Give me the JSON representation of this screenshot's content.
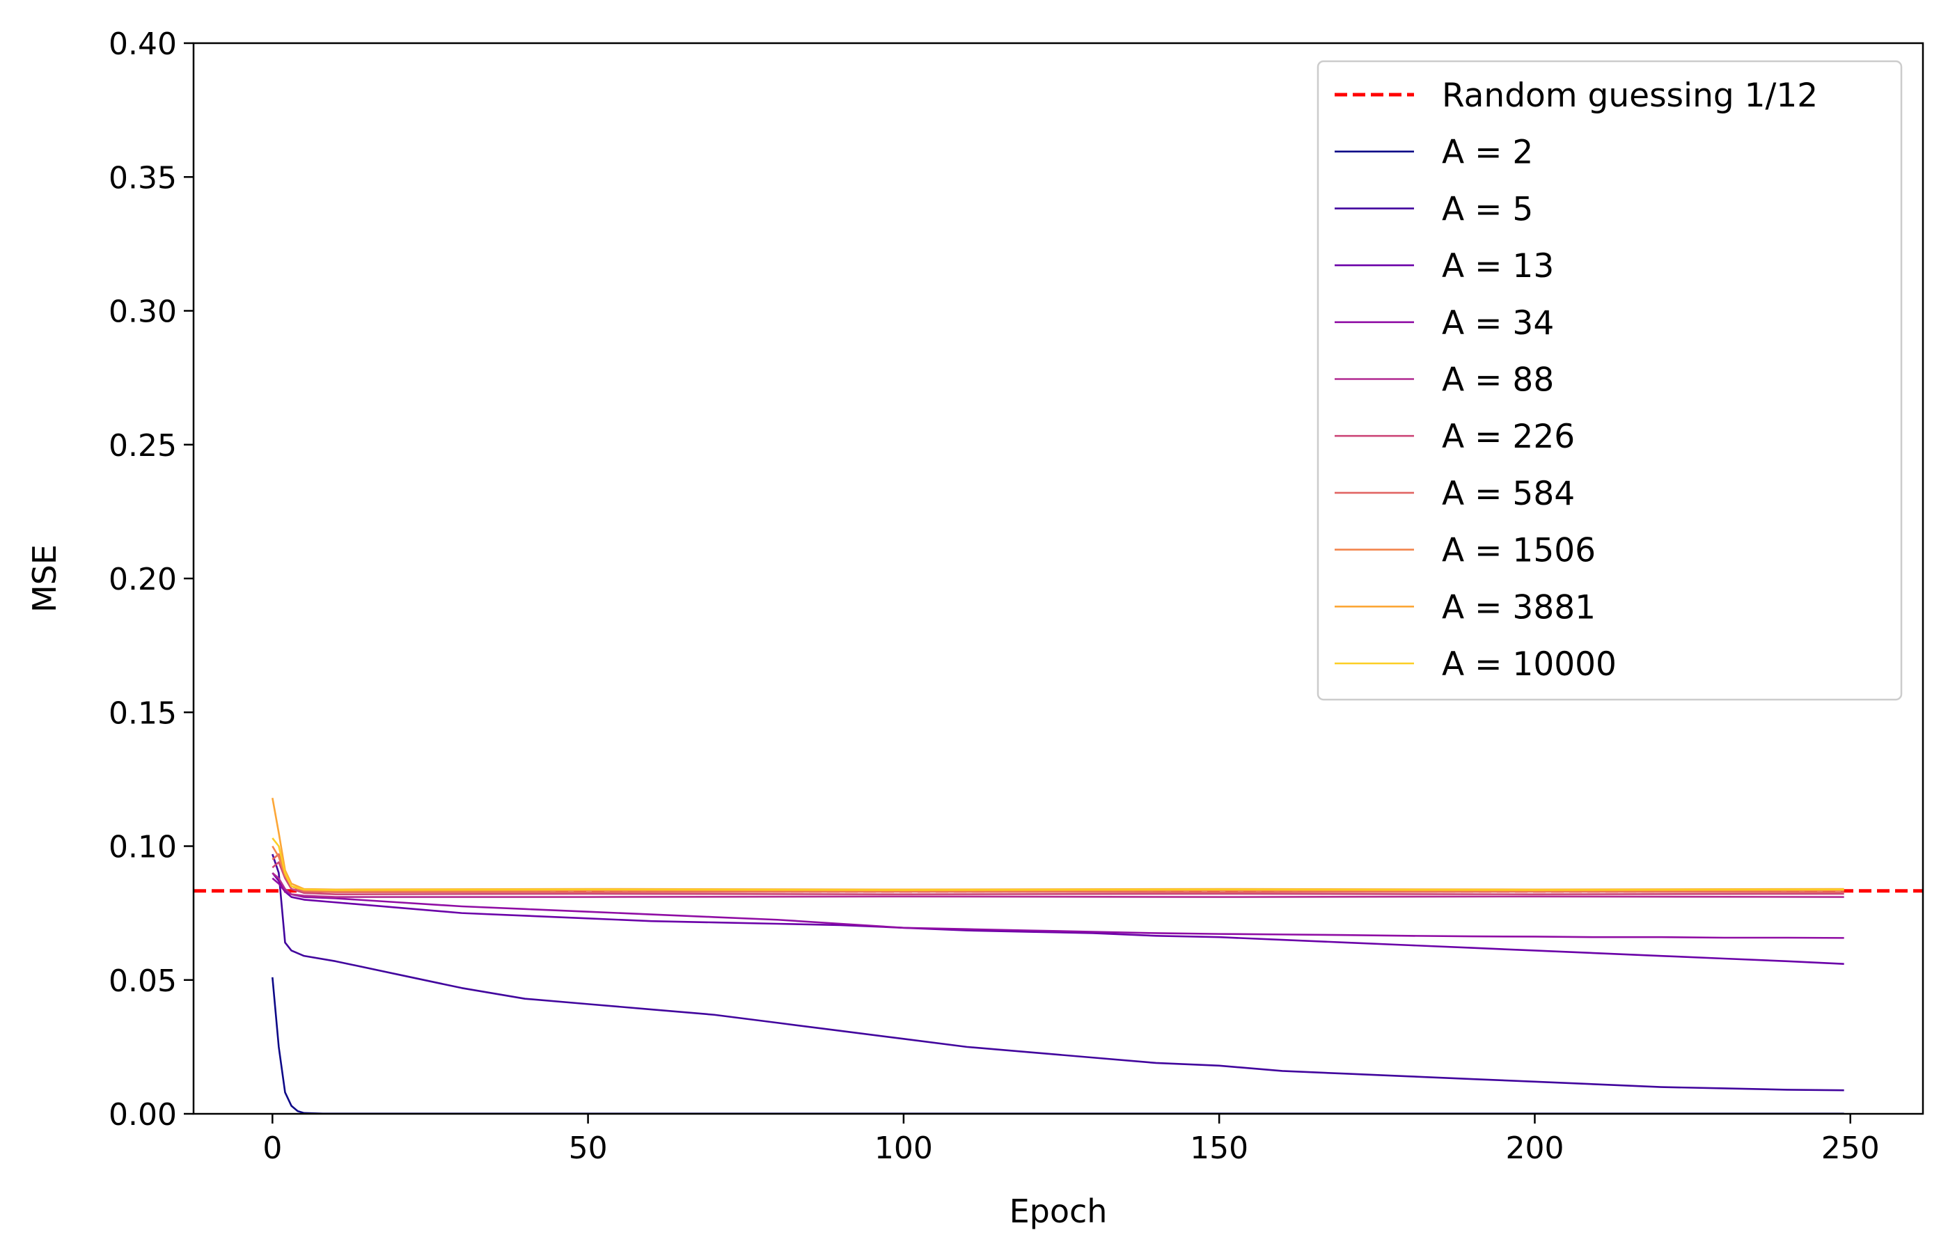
{
  "chart_data": {
    "type": "line",
    "title": "",
    "xlabel": "Epoch",
    "ylabel": "MSE",
    "xlim": [
      -12.5,
      261.5
    ],
    "ylim": [
      0,
      0.4
    ],
    "xticks": [
      0,
      50,
      100,
      150,
      200,
      250
    ],
    "yticks": [
      0.0,
      0.05,
      0.1,
      0.15,
      0.2,
      0.25,
      0.3,
      0.35,
      0.4
    ],
    "xtick_labels": [
      "0",
      "50",
      "100",
      "150",
      "200",
      "250"
    ],
    "ytick_labels": [
      "0.00",
      "0.05",
      "0.10",
      "0.15",
      "0.20",
      "0.25",
      "0.30",
      "0.35",
      "0.40"
    ],
    "grid": false,
    "legend_position": "top-right",
    "reference_line": {
      "name": "Random guessing 1/12",
      "y": 0.0833,
      "color": "#ff0000",
      "style": "dashed"
    },
    "epochs_end": 249,
    "series": [
      {
        "name": "A = 2",
        "color": "#0d0887",
        "points": [
          [
            0,
            0.051
          ],
          [
            1,
            0.025
          ],
          [
            2,
            0.008
          ],
          [
            3,
            0.003
          ],
          [
            4,
            0.001
          ],
          [
            5,
            0.0003
          ],
          [
            8,
            0.0001
          ],
          [
            249,
            0.0001
          ]
        ]
      },
      {
        "name": "A = 5",
        "color": "#41049d",
        "points": [
          [
            0,
            0.097
          ],
          [
            1,
            0.09
          ],
          [
            2,
            0.064
          ],
          [
            3,
            0.061
          ],
          [
            5,
            0.059
          ],
          [
            10,
            0.057
          ],
          [
            20,
            0.052
          ],
          [
            30,
            0.047
          ],
          [
            40,
            0.043
          ],
          [
            50,
            0.041
          ],
          [
            60,
            0.039
          ],
          [
            70,
            0.037
          ],
          [
            80,
            0.034
          ],
          [
            90,
            0.031
          ],
          [
            100,
            0.028
          ],
          [
            110,
            0.025
          ],
          [
            120,
            0.023
          ],
          [
            130,
            0.021
          ],
          [
            140,
            0.019
          ],
          [
            150,
            0.018
          ],
          [
            160,
            0.016
          ],
          [
            170,
            0.015
          ],
          [
            180,
            0.014
          ],
          [
            190,
            0.013
          ],
          [
            200,
            0.012
          ],
          [
            210,
            0.011
          ],
          [
            220,
            0.01
          ],
          [
            230,
            0.0095
          ],
          [
            240,
            0.009
          ],
          [
            249,
            0.0088
          ]
        ]
      },
      {
        "name": "A = 13",
        "color": "#6a00a8",
        "points": [
          [
            0,
            0.09
          ],
          [
            1,
            0.087
          ],
          [
            2,
            0.083
          ],
          [
            3,
            0.081
          ],
          [
            5,
            0.08
          ],
          [
            10,
            0.079
          ],
          [
            20,
            0.077
          ],
          [
            30,
            0.075
          ],
          [
            40,
            0.074
          ],
          [
            50,
            0.073
          ],
          [
            60,
            0.072
          ],
          [
            70,
            0.0715
          ],
          [
            80,
            0.071
          ],
          [
            90,
            0.0705
          ],
          [
            100,
            0.0695
          ],
          [
            110,
            0.0685
          ],
          [
            120,
            0.068
          ],
          [
            130,
            0.0675
          ],
          [
            140,
            0.0665
          ],
          [
            150,
            0.066
          ],
          [
            160,
            0.065
          ],
          [
            170,
            0.064
          ],
          [
            180,
            0.063
          ],
          [
            190,
            0.062
          ],
          [
            200,
            0.061
          ],
          [
            210,
            0.06
          ],
          [
            220,
            0.059
          ],
          [
            230,
            0.058
          ],
          [
            240,
            0.057
          ],
          [
            249,
            0.056
          ]
        ]
      },
      {
        "name": "A = 34",
        "color": "#8f0da4",
        "points": [
          [
            0,
            0.088
          ],
          [
            1,
            0.086
          ],
          [
            2,
            0.083
          ],
          [
            3,
            0.082
          ],
          [
            5,
            0.081
          ],
          [
            10,
            0.0805
          ],
          [
            20,
            0.079
          ],
          [
            30,
            0.0775
          ],
          [
            40,
            0.0765
          ],
          [
            50,
            0.0755
          ],
          [
            60,
            0.0745
          ],
          [
            70,
            0.0735
          ],
          [
            80,
            0.0725
          ],
          [
            90,
            0.071
          ],
          [
            100,
            0.0695
          ],
          [
            110,
            0.069
          ],
          [
            120,
            0.0685
          ],
          [
            130,
            0.068
          ],
          [
            140,
            0.0675
          ],
          [
            150,
            0.0672
          ],
          [
            160,
            0.067
          ],
          [
            170,
            0.0668
          ],
          [
            180,
            0.0665
          ],
          [
            190,
            0.0663
          ],
          [
            200,
            0.0662
          ],
          [
            210,
            0.066
          ],
          [
            220,
            0.066
          ],
          [
            230,
            0.0658
          ],
          [
            240,
            0.0658
          ],
          [
            249,
            0.0657
          ]
        ]
      },
      {
        "name": "A = 88",
        "color": "#b12a90",
        "points": [
          [
            0,
            0.09
          ],
          [
            1,
            0.088
          ],
          [
            2,
            0.084
          ],
          [
            3,
            0.082
          ],
          [
            5,
            0.0815
          ],
          [
            10,
            0.081
          ],
          [
            50,
            0.081
          ],
          [
            100,
            0.0812
          ],
          [
            150,
            0.081
          ],
          [
            200,
            0.0812
          ],
          [
            249,
            0.081
          ]
        ]
      },
      {
        "name": "A = 226",
        "color": "#cc4778",
        "points": [
          [
            0,
            0.092
          ],
          [
            1,
            0.094
          ],
          [
            2,
            0.088
          ],
          [
            3,
            0.084
          ],
          [
            5,
            0.0825
          ],
          [
            10,
            0.082
          ],
          [
            50,
            0.0822
          ],
          [
            100,
            0.082
          ],
          [
            150,
            0.0822
          ],
          [
            200,
            0.082
          ],
          [
            249,
            0.0822
          ]
        ]
      },
      {
        "name": "A = 584",
        "color": "#e16462",
        "points": [
          [
            0,
            0.095
          ],
          [
            1,
            0.097
          ],
          [
            2,
            0.09
          ],
          [
            3,
            0.085
          ],
          [
            5,
            0.083
          ],
          [
            10,
            0.0828
          ],
          [
            50,
            0.0828
          ],
          [
            100,
            0.083
          ],
          [
            150,
            0.0828
          ],
          [
            200,
            0.083
          ],
          [
            249,
            0.0828
          ]
        ]
      },
      {
        "name": "A = 1506",
        "color": "#f2844b",
        "points": [
          [
            0,
            0.1
          ],
          [
            1,
            0.096
          ],
          [
            2,
            0.089
          ],
          [
            3,
            0.085
          ],
          [
            5,
            0.0835
          ],
          [
            10,
            0.0832
          ],
          [
            50,
            0.0835
          ],
          [
            100,
            0.0833
          ],
          [
            150,
            0.0835
          ],
          [
            200,
            0.0833
          ],
          [
            249,
            0.0835
          ]
        ]
      },
      {
        "name": "A = 3881",
        "color": "#fca636",
        "points": [
          [
            0,
            0.118
          ],
          [
            1,
            0.105
          ],
          [
            2,
            0.091
          ],
          [
            3,
            0.086
          ],
          [
            5,
            0.084
          ],
          [
            10,
            0.0838
          ],
          [
            50,
            0.084
          ],
          [
            100,
            0.0838
          ],
          [
            150,
            0.084
          ],
          [
            200,
            0.0838
          ],
          [
            249,
            0.084
          ]
        ]
      },
      {
        "name": "A = 10000",
        "color": "#fcce25",
        "points": [
          [
            0,
            0.103
          ],
          [
            1,
            0.1
          ],
          [
            2,
            0.09
          ],
          [
            3,
            0.085
          ],
          [
            5,
            0.0838
          ],
          [
            10,
            0.0836
          ],
          [
            50,
            0.0838
          ],
          [
            100,
            0.0836
          ],
          [
            150,
            0.0838
          ],
          [
            200,
            0.0836
          ],
          [
            249,
            0.0838
          ]
        ]
      }
    ]
  }
}
